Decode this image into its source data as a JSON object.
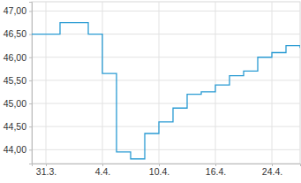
{
  "chart_data": {
    "type": "line",
    "line_style": "step",
    "color": "#2a9bd3",
    "grid": true,
    "categories": [
      null,
      "31.3.",
      null,
      null,
      null,
      "4.4.",
      null,
      null,
      null,
      "10.4.",
      null,
      null,
      null,
      "16.4.",
      null,
      null,
      null,
      "24.4.",
      null,
      null
    ],
    "values": [
      46.5,
      46.5,
      46.75,
      46.75,
      46.5,
      45.65,
      43.95,
      43.8,
      44.35,
      44.6,
      44.9,
      45.2,
      45.25,
      45.4,
      45.6,
      45.7,
      46.0,
      46.1,
      46.25,
      46.2
    ],
    "ylim": [
      43.7,
      47.2
    ],
    "yticks": [
      {
        "value": 44,
        "label": "44,00"
      },
      {
        "value": 44.5,
        "label": "44,50"
      },
      {
        "value": 45,
        "label": "45,00"
      },
      {
        "value": 45.5,
        "label": "45,50"
      },
      {
        "value": 46,
        "label": "46,00"
      },
      {
        "value": 46.5,
        "label": "46,50"
      },
      {
        "value": 47,
        "label": "47,00"
      }
    ]
  }
}
